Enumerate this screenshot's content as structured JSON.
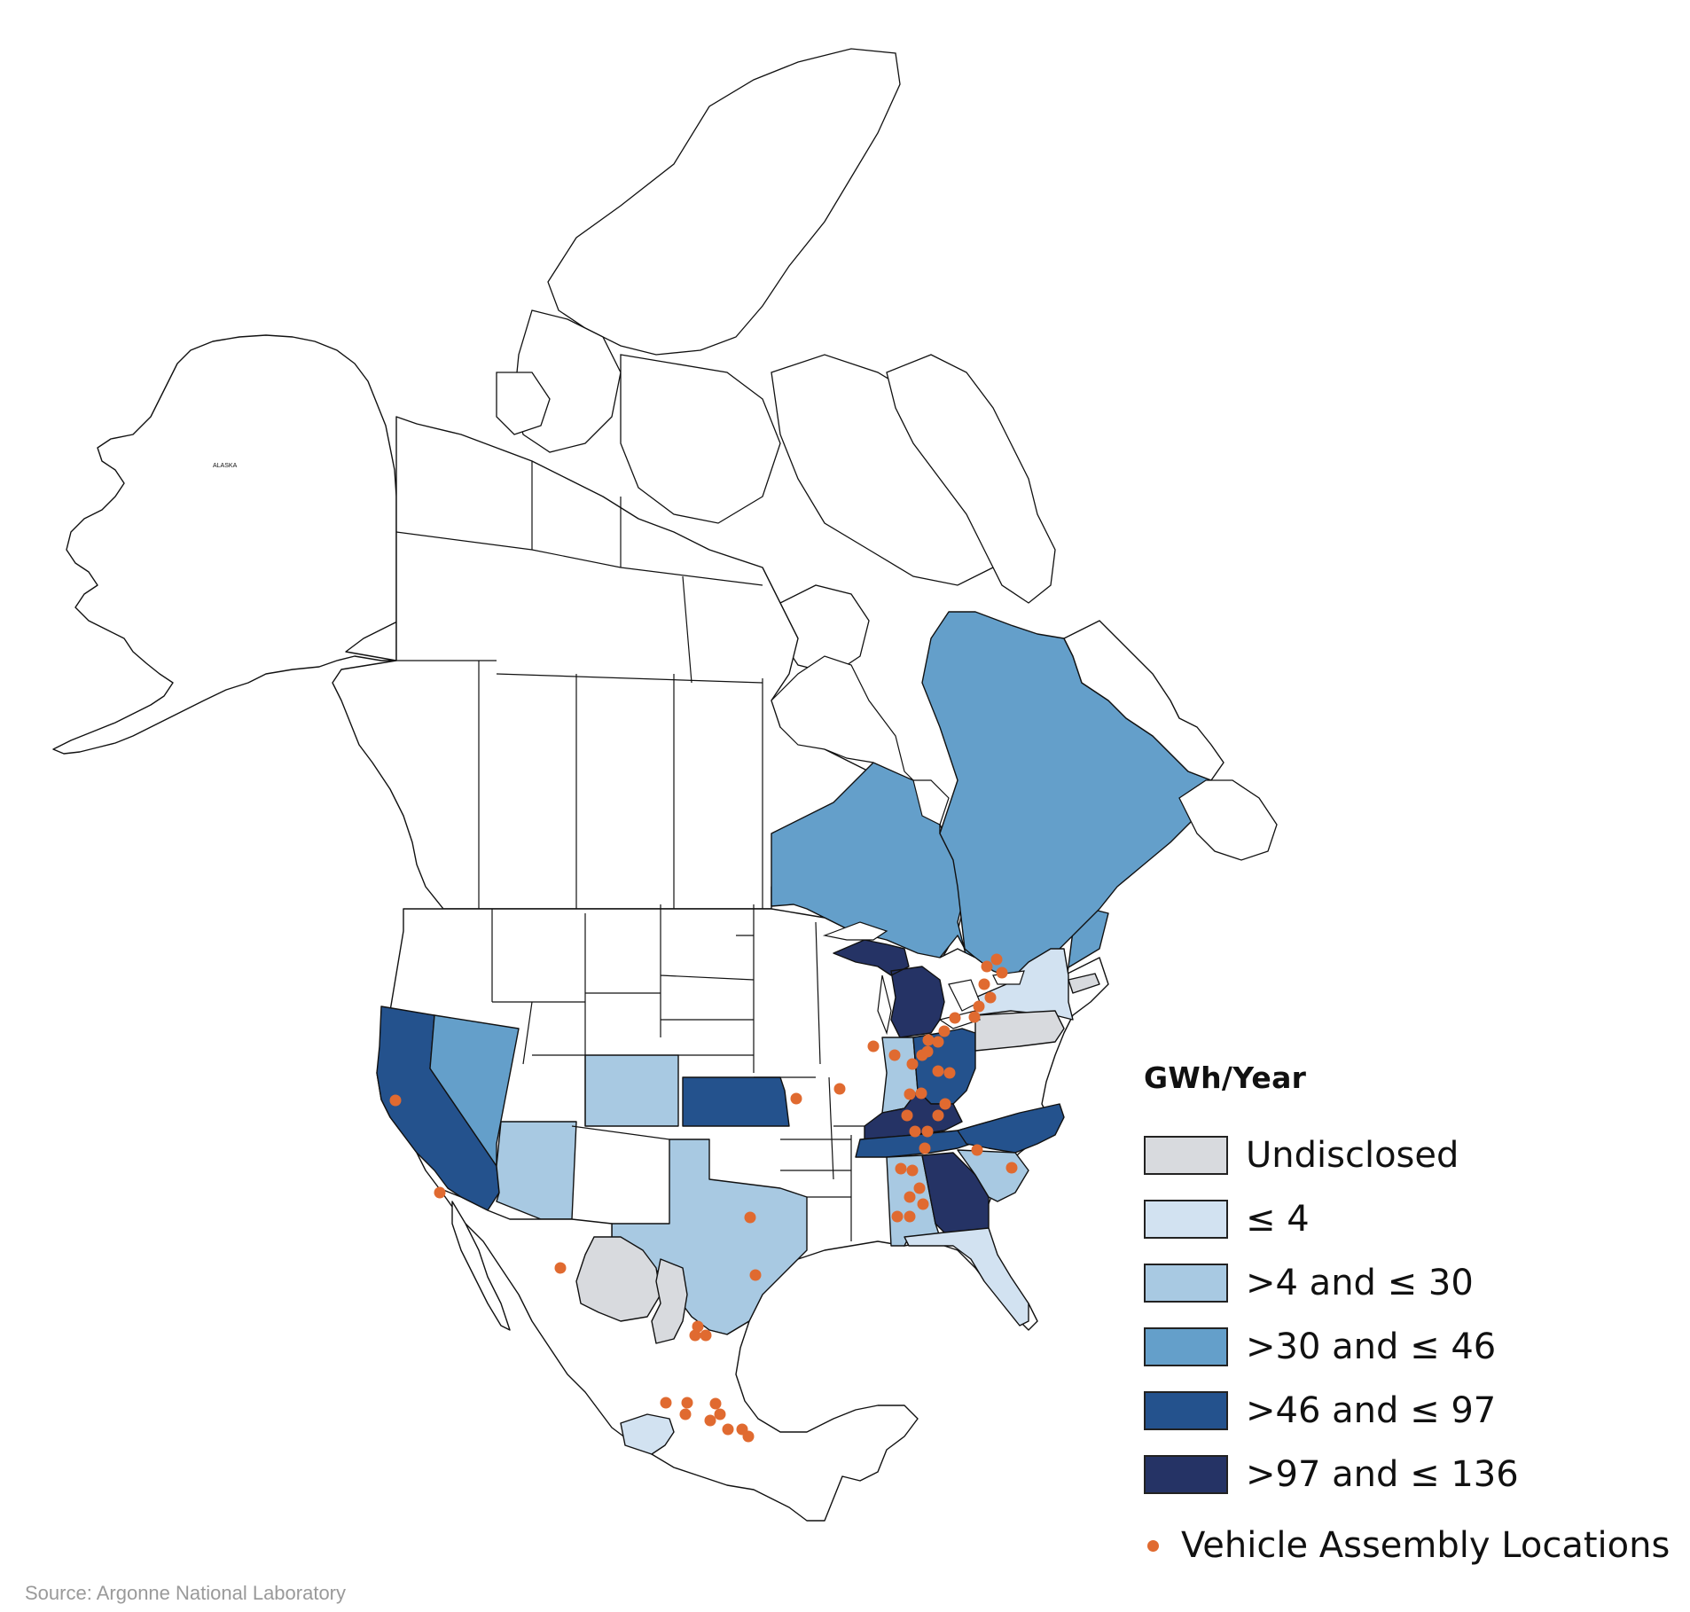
{
  "map": {
    "alaska_label": "ALASKA"
  },
  "legend": {
    "title": "GWh/Year",
    "items": [
      {
        "label": "Undisclosed",
        "color": "#d8dade"
      },
      {
        "label": "≤ 4",
        "color": "#d2e2f1"
      },
      {
        "label": ">4 and ≤ 30",
        "color": "#a8c9e2"
      },
      {
        "label": ">30 and ≤ 46",
        "color": "#649fca"
      },
      {
        "label": ">46 and ≤ 97",
        "color": "#24528d"
      },
      {
        "label": ">97 and ≤ 136",
        "color": "#253365"
      }
    ],
    "marker_label": "Vehicle Assembly Locations",
    "marker_color": "#e06a30"
  },
  "source": "Source: Argonne National Laboratory",
  "regions": {
    "Quebec": ">30 and ≤ 46",
    "Ontario": ">30 and ≤ 46",
    "Nevada": ">30 and ≤ 46",
    "California": ">46 and ≤ 97",
    "Kansas": ">46 and ≤ 97",
    "Ohio": ">46 and ≤ 97",
    "Tennessee": ">46 and ≤ 97",
    "North Carolina": ">46 and ≤ 97",
    "Michigan": ">97 and ≤ 136",
    "Kentucky": ">97 and ≤ 136",
    "Georgia": ">97 and ≤ 136",
    "Arizona": ">4 and ≤ 30",
    "Colorado": ">4 and ≤ 30",
    "Texas": ">4 and ≤ 30",
    "Indiana": ">4 and ≤ 30",
    "Alabama": ">4 and ≤ 30",
    "South Carolina": ">4 and ≤ 30",
    "New York": "≤ 4",
    "Florida": "≤ 4",
    "Pennsylvania": "Undisclosed",
    "Coahuila": "Undisclosed",
    "Nuevo Leon": "Undisclosed"
  }
}
